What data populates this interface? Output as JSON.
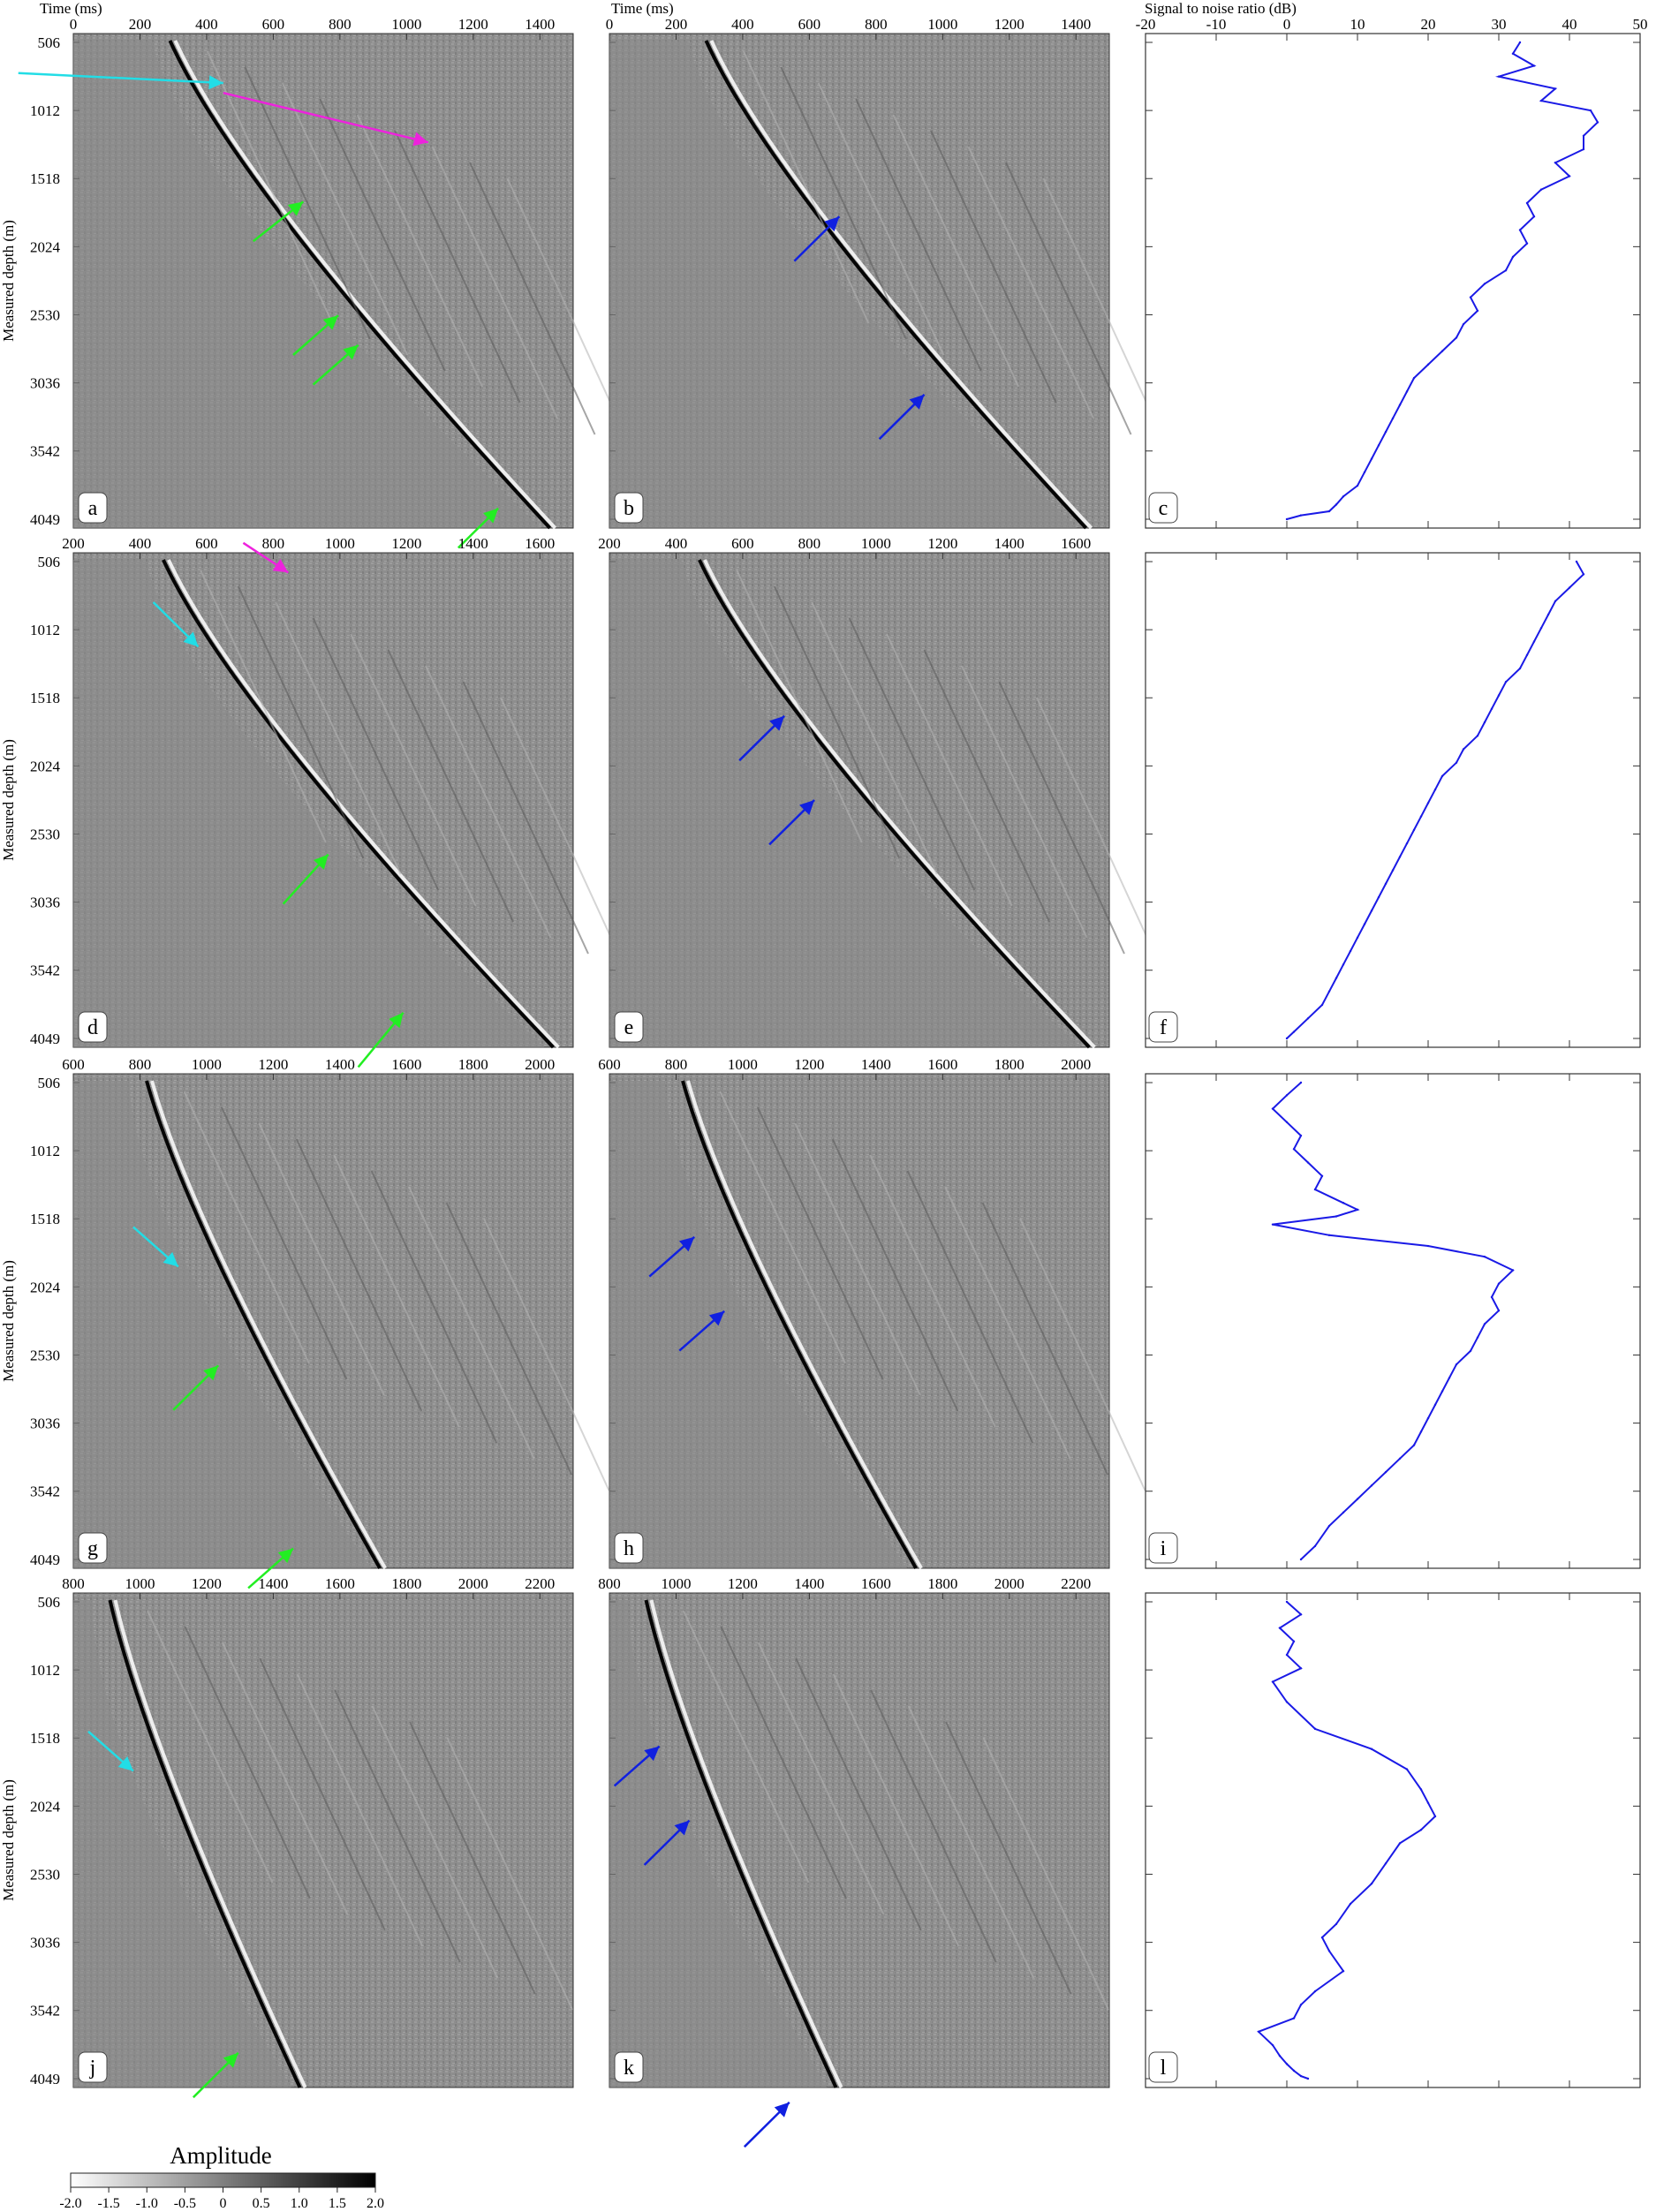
{
  "header": {
    "time_label_left": "Time (ms)",
    "time_label_mid": "Time (ms)",
    "snr_label": "Signal to noise ratio (dB)"
  },
  "depth_axis": {
    "label": "Measured depth (m)",
    "ticks": [
      "506",
      "1012",
      "1518",
      "2024",
      "2530",
      "3036",
      "3542",
      "4049"
    ]
  },
  "rows": [
    {
      "time_ticks": [
        "0",
        "200",
        "400",
        "600",
        "800",
        "1000",
        "1200",
        "1400"
      ],
      "tmin": 0,
      "tmax": 1500,
      "panel_letters": [
        "a",
        "b",
        "c"
      ],
      "first_arrival_ms": [
        290,
        1430
      ],
      "snr_ticks_shown": true
    },
    {
      "time_ticks": [
        "200",
        "400",
        "600",
        "800",
        "1000",
        "1200",
        "1400",
        "1600"
      ],
      "tmin": 200,
      "tmax": 1700,
      "panel_letters": [
        "d",
        "e",
        "f"
      ],
      "first_arrival_ms": [
        470,
        1640
      ],
      "snr_ticks_shown": false
    },
    {
      "time_ticks": [
        "600",
        "800",
        "1000",
        "1200",
        "1400",
        "1600",
        "1800",
        "2000"
      ],
      "tmin": 600,
      "tmax": 2100,
      "panel_letters": [
        "g",
        "h",
        "i"
      ],
      "first_arrival_ms": [
        820,
        1520
      ],
      "snr_ticks_shown": false
    },
    {
      "time_ticks": [
        "800",
        "1000",
        "1200",
        "1400",
        "1600",
        "1800",
        "2000",
        "2200"
      ],
      "tmin": 800,
      "tmax": 2300,
      "panel_letters": [
        "j",
        "k",
        "l"
      ],
      "first_arrival_ms": [
        910,
        1480
      ],
      "snr_ticks_shown": false
    }
  ],
  "colorbar": {
    "title": "Amplitude",
    "ticks": [
      "-2.0",
      "-1.5",
      "-1.0",
      "-0.5",
      "0",
      "0.5",
      "1.0",
      "1.5",
      "2.0"
    ]
  },
  "colors": {
    "cyan_arrow": "#22dde6",
    "green_arrow": "#22ee22",
    "magenta_arrow": "#ee22dd",
    "blue_arrow": "#1020e0",
    "snr_line": "#1a1ae6"
  },
  "chart_data": [
    {
      "type": "line",
      "panel": "c",
      "xlabel": "Signal to noise ratio (dB)",
      "ylabel": "Measured depth (m)",
      "xlim": [
        -20,
        50
      ],
      "ylim": [
        506,
        4049
      ],
      "x": [
        33,
        32,
        35,
        30,
        38,
        36,
        43,
        44,
        42,
        42,
        38,
        40,
        36,
        34,
        35,
        33,
        34,
        32,
        31,
        28,
        26,
        27,
        25,
        24,
        22,
        20,
        18,
        17,
        16,
        15,
        14,
        13,
        12,
        11,
        10,
        8,
        7,
        6,
        2,
        0
      ],
      "y": [
        506,
        590,
        680,
        760,
        850,
        940,
        1012,
        1100,
        1200,
        1300,
        1400,
        1500,
        1600,
        1700,
        1800,
        1900,
        2000,
        2100,
        2200,
        2300,
        2400,
        2500,
        2600,
        2700,
        2800,
        2900,
        3000,
        3100,
        3200,
        3300,
        3400,
        3500,
        3600,
        3700,
        3800,
        3880,
        3940,
        3990,
        4020,
        4049
      ]
    },
    {
      "type": "line",
      "panel": "f",
      "xlabel": "Signal to noise ratio (dB)",
      "ylabel": "Measured depth (m)",
      "xlim": [
        -20,
        50
      ],
      "ylim": [
        506,
        4049
      ],
      "x": [
        41,
        42,
        40,
        38,
        37,
        36,
        35,
        34,
        33,
        31,
        30,
        29,
        28,
        27,
        25,
        24,
        22,
        21,
        20,
        19,
        18,
        17,
        16,
        15,
        14,
        13,
        12,
        11,
        10,
        9,
        8,
        7,
        6,
        5,
        3,
        1,
        0
      ],
      "y": [
        506,
        600,
        700,
        800,
        900,
        1000,
        1100,
        1200,
        1300,
        1400,
        1500,
        1600,
        1700,
        1800,
        1900,
        2000,
        2100,
        2200,
        2300,
        2400,
        2500,
        2600,
        2700,
        2800,
        2900,
        3000,
        3100,
        3200,
        3300,
        3400,
        3500,
        3600,
        3700,
        3800,
        3900,
        4000,
        4049
      ]
    },
    {
      "type": "line",
      "panel": "i",
      "xlabel": "Signal to noise ratio (dB)",
      "ylabel": "Measured depth (m)",
      "xlim": [
        -20,
        50
      ],
      "ylim": [
        506,
        4049
      ],
      "x": [
        2,
        0,
        -2,
        0,
        2,
        1,
        3,
        5,
        4,
        8,
        10,
        7,
        -2,
        6,
        20,
        28,
        32,
        30,
        29,
        30,
        28,
        27,
        26,
        24,
        23,
        22,
        21,
        20,
        19,
        18,
        16,
        14,
        12,
        10,
        8,
        6,
        4,
        2
      ],
      "y": [
        506,
        600,
        700,
        800,
        900,
        1000,
        1100,
        1200,
        1300,
        1400,
        1450,
        1500,
        1560,
        1640,
        1720,
        1800,
        1900,
        2000,
        2100,
        2200,
        2300,
        2400,
        2500,
        2600,
        2700,
        2800,
        2900,
        3000,
        3100,
        3200,
        3300,
        3400,
        3500,
        3600,
        3700,
        3800,
        3950,
        4049
      ]
    },
    {
      "type": "line",
      "panel": "l",
      "xlabel": "Signal to noise ratio (dB)",
      "ylabel": "Measured depth (m)",
      "xlim": [
        -20,
        50
      ],
      "ylim": [
        506,
        4049
      ],
      "x": [
        0,
        2,
        -1,
        1,
        0,
        2,
        -2,
        0,
        4,
        12,
        17,
        19,
        20,
        21,
        19,
        16,
        14,
        12,
        9,
        7,
        5,
        6,
        8,
        4,
        2,
        1,
        -4,
        -2,
        -1,
        0,
        1,
        2,
        3
      ],
      "y": [
        506,
        600,
        700,
        800,
        900,
        1000,
        1100,
        1250,
        1450,
        1600,
        1750,
        1900,
        2000,
        2100,
        2200,
        2300,
        2450,
        2600,
        2750,
        2900,
        3000,
        3100,
        3250,
        3400,
        3500,
        3600,
        3700,
        3800,
        3880,
        3940,
        3990,
        4030,
        4049
      ]
    }
  ]
}
